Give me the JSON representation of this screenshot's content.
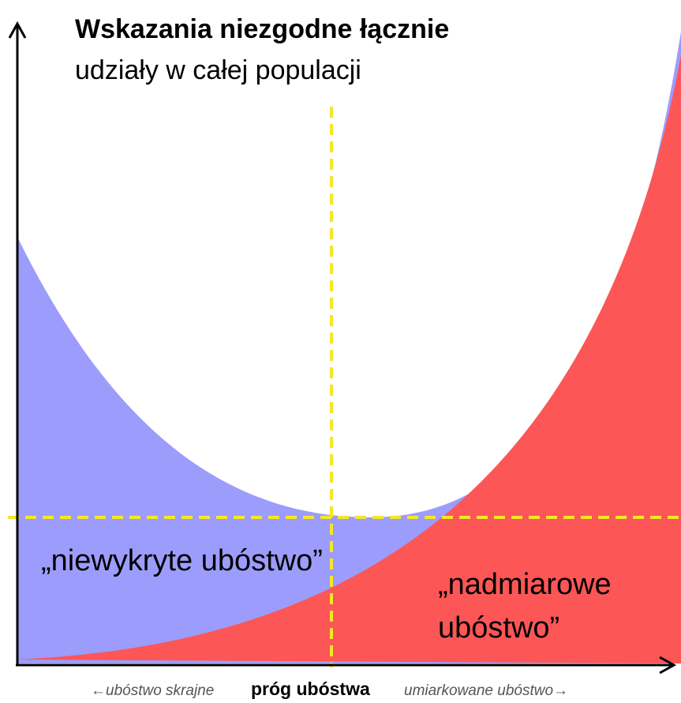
{
  "title": "Wskazania niezgodne łącznie",
  "subtitle": "udziały w całej populacji",
  "annotations": {
    "undetected": "„niewykryte ubóstwo”",
    "excess": [
      "„nadmiarowe",
      "ubóstwo”"
    ]
  },
  "x_axis": {
    "left": "←ubóstwo skrajne",
    "center": "próg ubóstwa",
    "right": "umiarkowane ubóstwo→"
  }
}
